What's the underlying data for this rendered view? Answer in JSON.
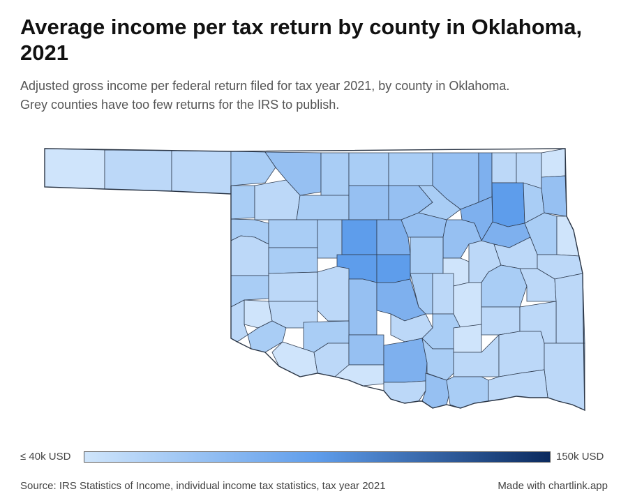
{
  "title": "Average income per tax return by county in Oklahoma, 2021",
  "subtitle_line1": "Adjusted gross income per federal return filed for tax year 2021, by county in Oklahoma.",
  "subtitle_line2": "Grey counties have too few returns for the IRS to publish.",
  "legend": {
    "min_label": "≤ 40k USD",
    "max_label": "150k USD",
    "min_color": "#cfe5fb",
    "mid_color": "#5f9deb",
    "max_color": "#0b2a5e"
  },
  "source": "Source: IRS Statistics of Income, individual income tax statistics, tax year 2021",
  "made_with": "Made with chartlink.app",
  "colors": {
    "very_light": "#cfe4fb",
    "light": "#bcd8f8",
    "light_mid": "#a9cdf5",
    "mid": "#96c0f2",
    "mid_strong": "#7eb0ee",
    "strong": "#5e9deb"
  }
}
